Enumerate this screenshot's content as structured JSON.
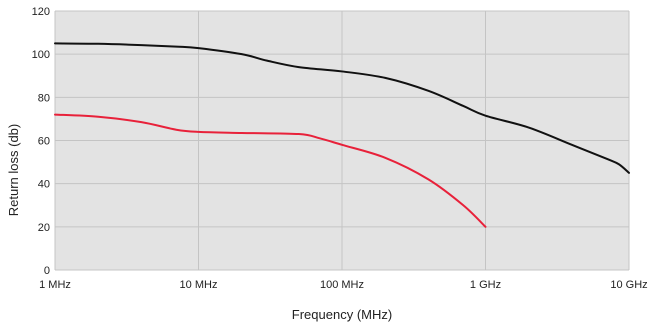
{
  "chart_data": {
    "type": "line",
    "title": "",
    "xlabel": "Frequency (MHz)",
    "ylabel": "Return loss (db)",
    "x_scale": "log",
    "xlim": [
      1,
      10000
    ],
    "ylim": [
      0,
      120
    ],
    "grid": true,
    "background_color": "#e3e3e3",
    "grid_color": "#c4c4c4",
    "x_ticks": [
      {
        "value": 1,
        "label": "1 MHz"
      },
      {
        "value": 10,
        "label": "10 MHz"
      },
      {
        "value": 100,
        "label": "100 MHz"
      },
      {
        "value": 1000,
        "label": "1 GHz"
      },
      {
        "value": 10000,
        "label": "10 GHz"
      }
    ],
    "y_ticks": [
      {
        "value": 0,
        "label": "0"
      },
      {
        "value": 20,
        "label": "20"
      },
      {
        "value": 40,
        "label": "40"
      },
      {
        "value": 60,
        "label": "60"
      },
      {
        "value": 80,
        "label": "80"
      },
      {
        "value": 100,
        "label": "100"
      },
      {
        "value": 120,
        "label": "120"
      }
    ],
    "series": [
      {
        "color": "#111111",
        "points": [
          [
            1,
            105
          ],
          [
            2,
            104.8
          ],
          [
            4,
            104.2
          ],
          [
            7,
            103.5
          ],
          [
            10,
            102.8
          ],
          [
            20,
            100
          ],
          [
            30,
            97
          ],
          [
            50,
            94
          ],
          [
            100,
            92
          ],
          [
            200,
            89
          ],
          [
            400,
            83
          ],
          [
            700,
            76
          ],
          [
            1000,
            71.5
          ],
          [
            2000,
            66
          ],
          [
            4000,
            58
          ],
          [
            7000,
            51.5
          ],
          [
            8500,
            49
          ],
          [
            10000,
            45
          ]
        ]
      },
      {
        "color": "#e8213a",
        "points": [
          [
            1,
            72
          ],
          [
            2,
            71
          ],
          [
            4,
            68.5
          ],
          [
            7,
            65
          ],
          [
            10,
            64
          ],
          [
            20,
            63.5
          ],
          [
            50,
            63
          ],
          [
            70,
            61
          ],
          [
            100,
            58
          ],
          [
            200,
            52
          ],
          [
            400,
            42
          ],
          [
            700,
            30
          ],
          [
            1000,
            20
          ]
        ]
      }
    ]
  }
}
